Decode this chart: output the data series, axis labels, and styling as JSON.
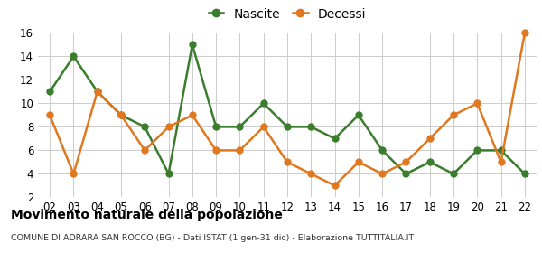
{
  "x_labels": [
    "02",
    "03",
    "04",
    "05",
    "06",
    "07",
    "08",
    "09",
    "10",
    "11",
    "12",
    "13",
    "14",
    "15",
    "16",
    "17",
    "18",
    "19",
    "20",
    "21",
    "22"
  ],
  "nascite": [
    11,
    14,
    11,
    9,
    8,
    4,
    15,
    8,
    8,
    10,
    8,
    8,
    7,
    9,
    6,
    4,
    5,
    4,
    6,
    6,
    4
  ],
  "decessi": [
    9,
    4,
    11,
    9,
    6,
    8,
    9,
    6,
    6,
    8,
    5,
    4,
    3,
    5,
    4,
    5,
    7,
    9,
    10,
    5,
    16
  ],
  "nascite_color": "#3a7d2c",
  "decessi_color": "#e07820",
  "marker_size": 5,
  "line_width": 1.8,
  "ylim": [
    2,
    16
  ],
  "yticks": [
    2,
    4,
    6,
    8,
    10,
    12,
    14,
    16
  ],
  "title_bold": "Movimento naturale della popolazione",
  "subtitle": "COMUNE DI ADRARA SAN ROCCO (BG) - Dati ISTAT (1 gen-31 dic) - Elaborazione TUTTITALIA.IT",
  "legend_nascite": "Nascite",
  "legend_decessi": "Decessi",
  "bg_color": "#ffffff",
  "grid_color": "#cccccc"
}
